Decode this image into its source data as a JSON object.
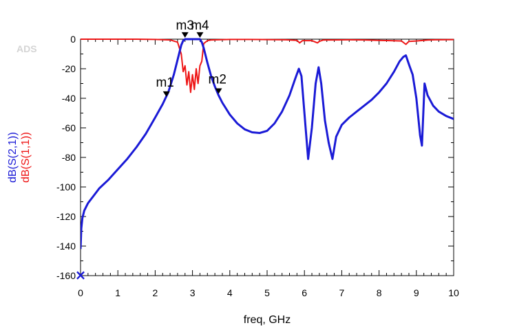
{
  "watermark": "ADS",
  "chart_data": {
    "type": "line",
    "title": "",
    "xlabel": "freq, GHz",
    "ylabel_series": [
      "dB(S(2,1))",
      "dB(S(1,1))"
    ],
    "xlim": [
      0,
      10
    ],
    "ylim": [
      -160,
      0
    ],
    "xticks": [
      "0",
      "1",
      "2",
      "3",
      "4",
      "5",
      "6",
      "7",
      "8",
      "9",
      "10"
    ],
    "yticks": [
      "0",
      "-20",
      "-40",
      "-60",
      "-80",
      "-100",
      "-120",
      "-140",
      "-160"
    ],
    "grid": false,
    "series": [
      {
        "name": "dB(S(2,1))",
        "color": "#1a1ad6",
        "x": [
          0.0,
          0.02,
          0.05,
          0.1,
          0.2,
          0.35,
          0.5,
          0.75,
          1.0,
          1.25,
          1.5,
          1.75,
          2.0,
          2.2,
          2.35,
          2.5,
          2.6,
          2.7,
          2.75,
          2.8,
          2.85,
          3.0,
          3.15,
          3.2,
          3.25,
          3.3,
          3.4,
          3.5,
          3.6,
          3.7,
          3.8,
          4.0,
          4.2,
          4.4,
          4.6,
          4.8,
          5.0,
          5.2,
          5.4,
          5.6,
          5.75,
          5.85,
          5.92,
          6.0,
          6.1,
          6.2,
          6.3,
          6.38,
          6.45,
          6.55,
          6.65,
          6.75,
          6.85,
          7.0,
          7.2,
          7.4,
          7.6,
          7.8,
          8.0,
          8.2,
          8.4,
          8.55,
          8.65,
          8.72,
          8.8,
          8.9,
          9.0,
          9.1,
          9.15,
          9.22,
          9.3,
          9.45,
          9.6,
          9.8,
          10.0
        ],
        "y": [
          -142,
          -128,
          -121,
          -116,
          -111,
          -106,
          -101,
          -95,
          -88,
          -81,
          -73,
          -64,
          -53,
          -44,
          -36,
          -24,
          -14,
          -4,
          -1,
          0,
          0,
          0,
          0,
          0,
          -2,
          -6,
          -16,
          -25,
          -32,
          -38,
          -43,
          -51,
          -57,
          -61,
          -63,
          -63.5,
          -62,
          -57,
          -49,
          -38,
          -27,
          -20,
          -25,
          -50,
          -81,
          -60,
          -30,
          -19,
          -30,
          -55,
          -70,
          -81,
          -66,
          -58,
          -53,
          -49,
          -45,
          -41,
          -36,
          -30,
          -22,
          -15,
          -12,
          -11,
          -17,
          -24,
          -40,
          -65,
          -72,
          -30,
          -38,
          -45,
          -49,
          -52,
          -54
        ]
      },
      {
        "name": "dB(S(1,1))",
        "color": "#ee1515",
        "x": [
          0.0,
          0.5,
          1.0,
          1.5,
          2.0,
          2.4,
          2.6,
          2.7,
          2.75,
          2.8,
          2.85,
          2.9,
          2.95,
          3.0,
          3.05,
          3.1,
          3.15,
          3.2,
          3.25,
          3.3,
          3.4,
          3.5,
          4.0,
          4.5,
          5.0,
          5.5,
          5.8,
          5.87,
          5.95,
          6.2,
          6.35,
          6.4,
          6.5,
          6.8,
          7.2,
          7.6,
          8.0,
          8.3,
          8.6,
          8.72,
          8.8,
          9.0,
          9.3,
          9.5,
          10.0
        ],
        "y": [
          0,
          0,
          0,
          0,
          -0.2,
          -0.5,
          -2,
          -10,
          -22,
          -18,
          -31,
          -22,
          -36,
          -24,
          -34,
          -20,
          -30,
          -18,
          -15,
          -3,
          -1,
          -0.5,
          -0.2,
          -0.2,
          -0.3,
          -0.4,
          -0.8,
          -2.5,
          -1,
          -1,
          -2.5,
          -1.5,
          -0.6,
          -0.5,
          -0.4,
          -0.5,
          -0.8,
          -1,
          -1.2,
          -3.5,
          -1.5,
          -1.2,
          -0.6,
          -0.4,
          -0.3
        ]
      }
    ],
    "markers": [
      {
        "name": "m1",
        "x": 2.3,
        "y": -39
      },
      {
        "name": "m2",
        "x": 3.7,
        "y": -37
      },
      {
        "name": "m3",
        "x": 2.8,
        "y": 1
      },
      {
        "name": "m4",
        "x": 3.2,
        "y": 1
      }
    ],
    "origin_marker": {
      "symbol": "×",
      "x": 0,
      "y": -160,
      "color": "#1a1ad6"
    }
  }
}
